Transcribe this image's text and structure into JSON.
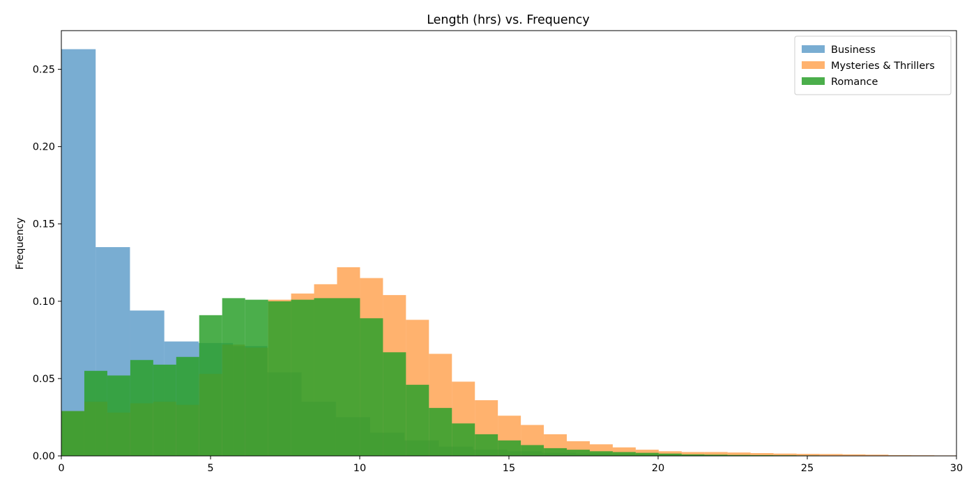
{
  "chart_data": {
    "type": "histogram",
    "title": "Length (hrs) vs. Frequency",
    "xlabel": "",
    "ylabel": "Frequency",
    "xlim": [
      0,
      30
    ],
    "ylim": [
      0,
      0.275
    ],
    "x_ticks": [
      0,
      5,
      10,
      15,
      20,
      25,
      30
    ],
    "y_ticks": [
      0.0,
      0.05,
      0.1,
      0.15,
      0.2,
      0.25
    ],
    "y_tick_decimals": 2,
    "grid": false,
    "legend_position": "top-right",
    "series": [
      {
        "name": "Business",
        "color": "#1f77b4",
        "opacity": 0.6,
        "edges": [
          0,
          1.15,
          2.3,
          3.45,
          4.6,
          5.75,
          6.9,
          8.05,
          9.2,
          10.35,
          11.5,
          12.65,
          13.8,
          14.95,
          16.1,
          17.25,
          18.4,
          19.55,
          20.7,
          21.85,
          23.0
        ],
        "values": [
          0.263,
          0.135,
          0.094,
          0.074,
          0.073,
          0.071,
          0.054,
          0.035,
          0.025,
          0.015,
          0.01,
          0.006,
          0.004,
          0.003,
          0.002,
          0.0015,
          0.001,
          0.0008,
          0.0005,
          0.0003
        ]
      },
      {
        "name": "Mysteries & Thrillers",
        "color": "#ff7f0e",
        "opacity": 0.6,
        "edges": [
          0,
          0.77,
          1.54,
          2.31,
          3.08,
          3.85,
          4.62,
          5.39,
          6.16,
          6.93,
          7.7,
          8.47,
          9.24,
          10.01,
          10.78,
          11.55,
          12.32,
          13.09,
          13.86,
          14.63,
          15.4,
          16.17,
          16.94,
          17.71,
          18.48,
          19.25,
          20.02,
          20.79,
          21.56,
          22.33,
          23.1,
          23.87,
          24.64,
          25.41,
          26.18,
          26.95,
          27.72,
          28.49,
          29.26,
          30.03
        ],
        "values": [
          0.029,
          0.035,
          0.028,
          0.034,
          0.035,
          0.033,
          0.053,
          0.072,
          0.07,
          0.101,
          0.105,
          0.111,
          0.122,
          0.115,
          0.104,
          0.088,
          0.066,
          0.048,
          0.036,
          0.026,
          0.02,
          0.014,
          0.0095,
          0.0075,
          0.0055,
          0.004,
          0.003,
          0.0025,
          0.0025,
          0.0022,
          0.0018,
          0.0015,
          0.0013,
          0.0012,
          0.001,
          0.0008,
          0.0005,
          0.0004,
          0.0003
        ]
      },
      {
        "name": "Romance",
        "color": "#2ca02c",
        "opacity": 0.85,
        "edges": [
          0,
          0.77,
          1.54,
          2.31,
          3.08,
          3.85,
          4.62,
          5.39,
          6.16,
          6.93,
          7.7,
          8.47,
          9.24,
          10.01,
          10.78,
          11.55,
          12.32,
          13.09,
          13.86,
          14.63,
          15.4,
          16.17,
          16.94,
          17.71,
          18.48,
          19.25,
          20.02,
          20.79,
          21.56,
          22.33,
          23.1,
          23.87,
          24.64,
          25.41,
          26.18,
          26.95,
          27.72,
          28.49,
          29.26,
          30.03
        ],
        "values": [
          0.029,
          0.055,
          0.052,
          0.062,
          0.059,
          0.064,
          0.091,
          0.102,
          0.101,
          0.1,
          0.101,
          0.102,
          0.102,
          0.089,
          0.067,
          0.046,
          0.031,
          0.021,
          0.014,
          0.01,
          0.007,
          0.005,
          0.004,
          0.003,
          0.0025,
          0.002,
          0.0015,
          0.001,
          0.0008,
          0.0006,
          0.0005,
          0.0004,
          0.0003,
          0.0002,
          0.0002,
          0.0001,
          0.0001,
          0.0001,
          0.0001
        ]
      }
    ]
  }
}
